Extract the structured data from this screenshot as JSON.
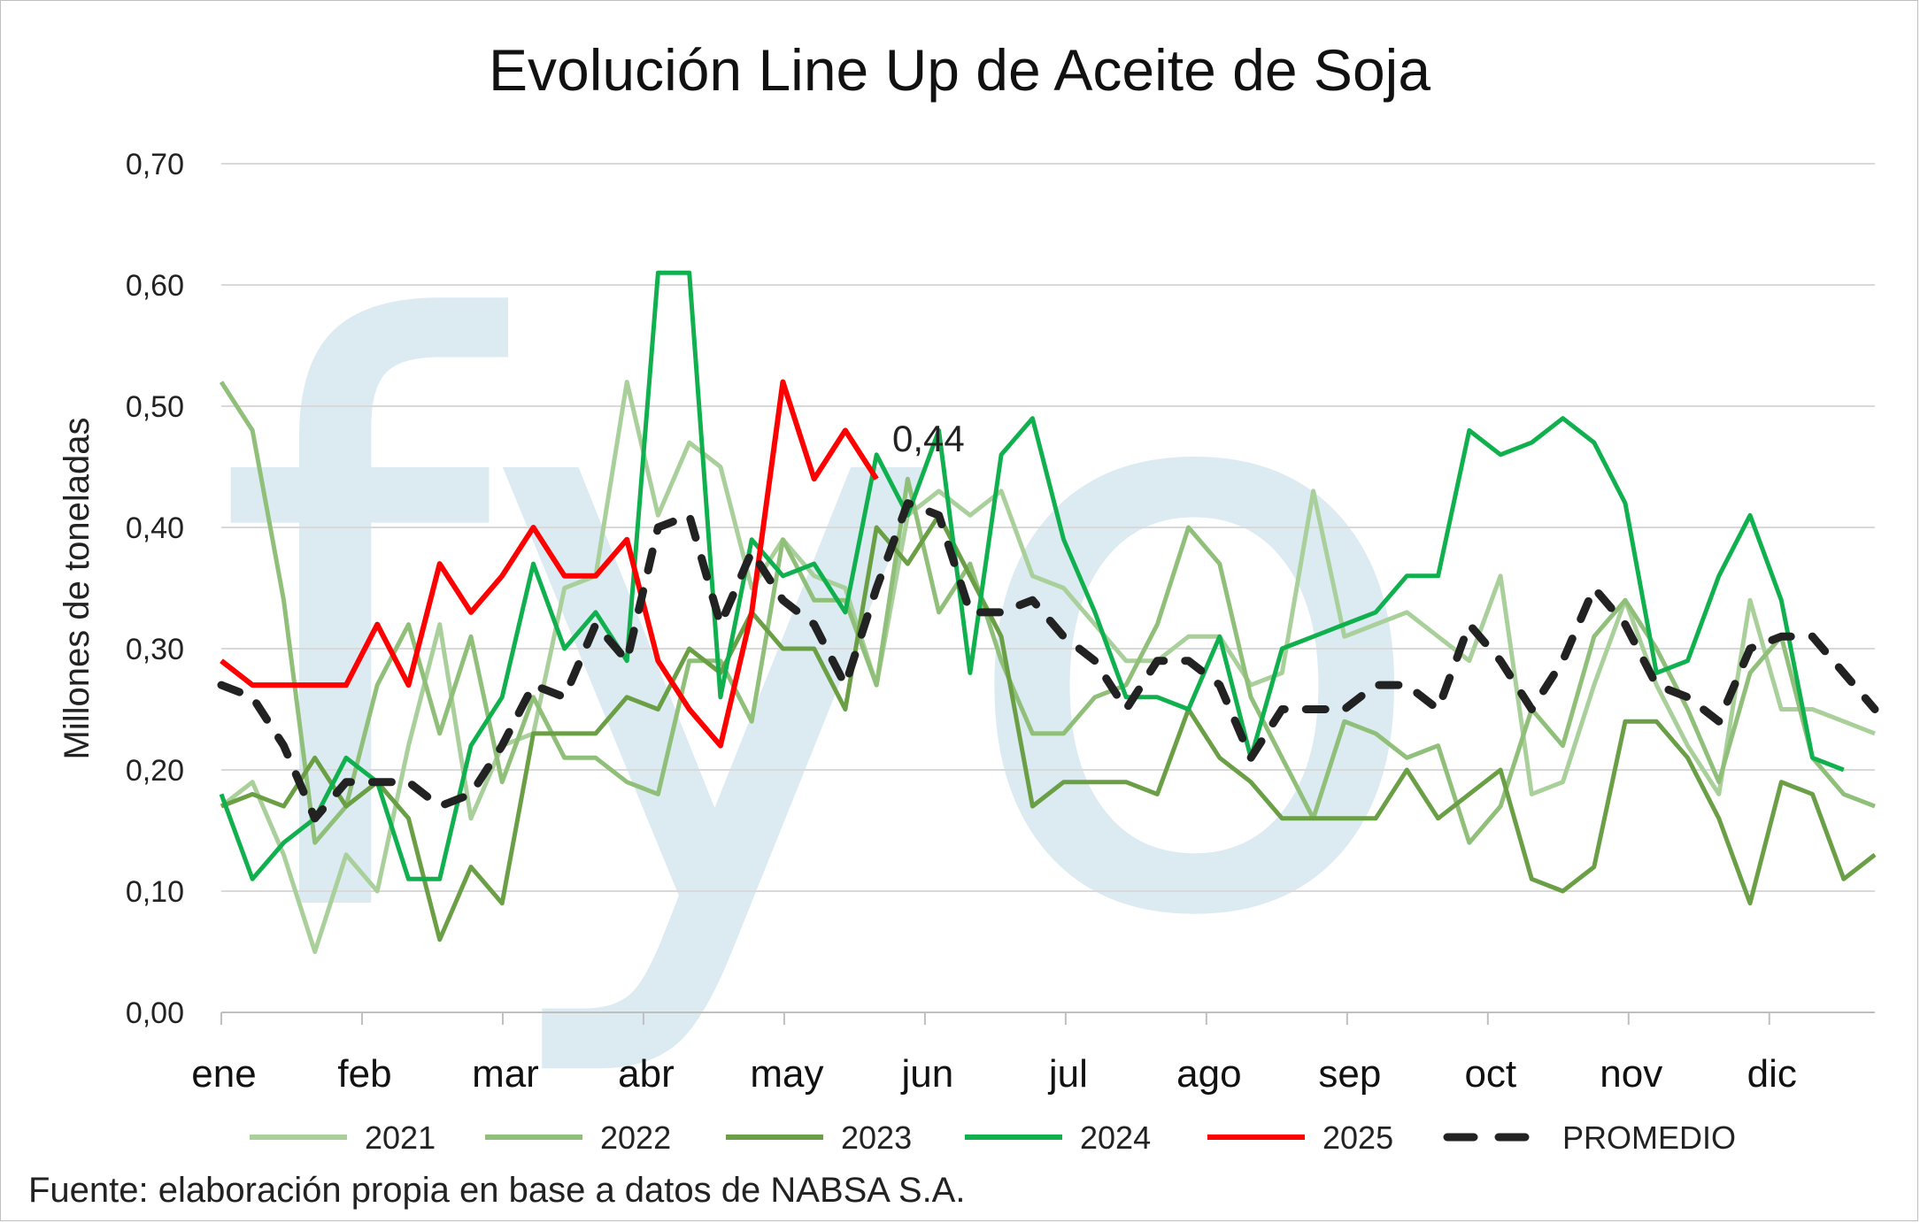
{
  "chart_data": {
    "type": "line",
    "title": "Evolución Line Up de Aceite de Soja",
    "ylabel": "Millones de toneladas",
    "xlabel": "",
    "ylim": [
      0,
      0.7
    ],
    "yticks": [
      "0,00",
      "0,10",
      "0,20",
      "0,30",
      "0,40",
      "0,50",
      "0,60",
      "0,70"
    ],
    "month_labels": [
      "ene",
      "feb",
      "mar",
      "abr",
      "may",
      "jun",
      "jul",
      "ago",
      "sep",
      "oct",
      "nov",
      "dic"
    ],
    "grid": true,
    "legend_position": "bottom",
    "watermark": "fyo",
    "annotation": {
      "text": "0,44",
      "series": "2025"
    },
    "source": "Fuente: elaboración propia en base a datos de NABSA S.A.",
    "series": [
      {
        "name": "2021",
        "color": "#a9cf9a",
        "dashed": false,
        "width": 5,
        "values": [
          0.17,
          0.19,
          0.13,
          0.05,
          0.13,
          0.1,
          0.22,
          0.32,
          0.16,
          0.22,
          0.23,
          0.35,
          0.36,
          0.52,
          0.41,
          0.47,
          0.45,
          0.35,
          0.39,
          0.36,
          0.35,
          0.27,
          0.41,
          0.43,
          0.41,
          0.43,
          0.36,
          0.35,
          0.32,
          0.29,
          0.29,
          0.31,
          0.31,
          0.27,
          0.28,
          0.43,
          0.31,
          0.32,
          0.33,
          0.31,
          0.29,
          0.36,
          0.18,
          0.19,
          0.27,
          0.34,
          0.27,
          0.22,
          0.18,
          0.34,
          0.25,
          0.25,
          0.24,
          0.23
        ]
      },
      {
        "name": "2022",
        "color": "#8fbf78",
        "dashed": false,
        "width": 5,
        "values": [
          0.52,
          0.48,
          0.34,
          0.14,
          0.17,
          0.27,
          0.32,
          0.23,
          0.31,
          0.19,
          0.26,
          0.21,
          0.21,
          0.19,
          0.18,
          0.29,
          0.29,
          0.24,
          0.39,
          0.34,
          0.34,
          0.27,
          0.44,
          0.33,
          0.37,
          0.29,
          0.23,
          0.23,
          0.26,
          0.27,
          0.32,
          0.4,
          0.37,
          0.26,
          0.21,
          0.16,
          0.24,
          0.23,
          0.21,
          0.22,
          0.14,
          0.17,
          0.25,
          0.22,
          0.31,
          0.34,
          0.3,
          0.25,
          0.19,
          0.28,
          0.31,
          0.21,
          0.18,
          0.17
        ]
      },
      {
        "name": "2023",
        "color": "#6a9f45",
        "dashed": false,
        "width": 5,
        "values": [
          0.17,
          0.18,
          0.17,
          0.21,
          0.17,
          0.19,
          0.16,
          0.06,
          0.12,
          0.09,
          0.23,
          0.23,
          0.23,
          0.26,
          0.25,
          0.3,
          0.28,
          0.33,
          0.3,
          0.3,
          0.25,
          0.4,
          0.37,
          0.41,
          0.36,
          0.31,
          0.17,
          0.19,
          0.19,
          0.19,
          0.18,
          0.25,
          0.21,
          0.19,
          0.16,
          0.16,
          0.16,
          0.16,
          0.2,
          0.16,
          0.18,
          0.2,
          0.11,
          0.1,
          0.12,
          0.24,
          0.24,
          0.21,
          0.16,
          0.09,
          0.19,
          0.18,
          0.11,
          0.13
        ]
      },
      {
        "name": "2024",
        "color": "#10b04f",
        "dashed": false,
        "width": 5,
        "values": [
          0.18,
          0.11,
          0.14,
          0.16,
          0.21,
          0.19,
          0.11,
          0.11,
          0.22,
          0.26,
          0.37,
          0.3,
          0.33,
          0.29,
          0.61,
          0.61,
          0.26,
          0.39,
          0.36,
          0.37,
          0.33,
          0.46,
          0.41,
          0.48,
          0.28,
          0.46,
          0.49,
          0.39,
          0.33,
          0.26,
          0.26,
          0.25,
          0.31,
          0.21,
          0.3,
          0.31,
          0.32,
          0.33,
          0.36,
          0.36,
          0.48,
          0.46,
          0.47,
          0.49,
          0.47,
          0.42,
          0.28,
          0.29,
          0.36,
          0.41,
          0.34,
          0.21,
          0.2
        ]
      },
      {
        "name": "2025",
        "color": "#ff0000",
        "dashed": false,
        "width": 6,
        "values": [
          0.29,
          0.27,
          0.27,
          0.27,
          0.27,
          0.32,
          0.27,
          0.37,
          0.33,
          0.36,
          0.4,
          0.36,
          0.36,
          0.39,
          0.29,
          0.25,
          0.22,
          0.33,
          0.52,
          0.44,
          0.48,
          0.44
        ]
      },
      {
        "name": "PROMEDIO",
        "color": "#222222",
        "dashed": true,
        "width": 9,
        "values": [
          0.27,
          0.26,
          0.22,
          0.16,
          0.19,
          0.19,
          0.19,
          0.17,
          0.18,
          0.22,
          0.27,
          0.26,
          0.32,
          0.29,
          0.4,
          0.41,
          0.32,
          0.38,
          0.34,
          0.32,
          0.27,
          0.35,
          0.42,
          0.41,
          0.33,
          0.33,
          0.34,
          0.31,
          0.29,
          0.25,
          0.29,
          0.29,
          0.27,
          0.21,
          0.25,
          0.25,
          0.25,
          0.27,
          0.27,
          0.25,
          0.32,
          0.29,
          0.25,
          0.29,
          0.35,
          0.32,
          0.27,
          0.26,
          0.24,
          0.3,
          0.31,
          0.31,
          0.28,
          0.25
        ]
      }
    ]
  }
}
